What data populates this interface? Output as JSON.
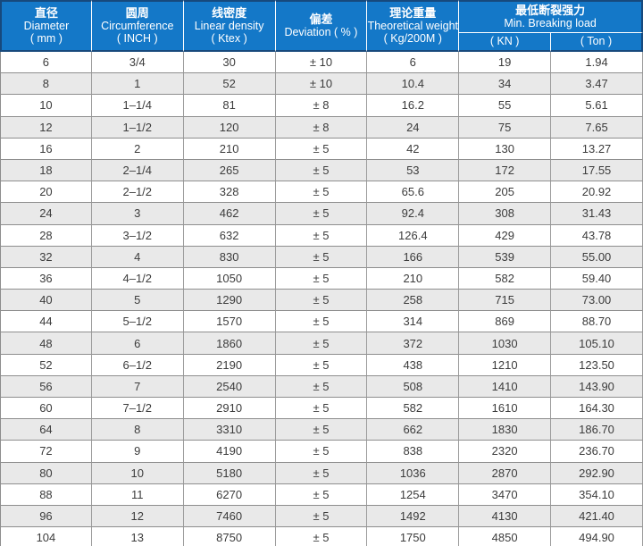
{
  "colors": {
    "header_background": "#1478c8",
    "header_border": "#17497c",
    "header_text": "#ffffff",
    "row_alternate": "#e9e9e9",
    "grid_line": "#9c9c9c",
    "body_text": "#3c3c3c"
  },
  "chart_data": {
    "type": "table",
    "columns": [
      {
        "cn": "直径",
        "en": "Diameter",
        "unit": "( mm )"
      },
      {
        "cn": "圆周",
        "en": "Circumference",
        "unit": "( INCH )"
      },
      {
        "cn": "线密度",
        "en": "Linear density",
        "unit": "( Ktex )"
      },
      {
        "cn": "偏差",
        "en": "Deviation ( % )",
        "unit": ""
      },
      {
        "cn": "理论重量",
        "en": "Theoretical weight",
        "unit": "( Kg/200M )"
      }
    ],
    "group_header": {
      "cn": "最低断裂强力",
      "en": "Min. Breaking load",
      "sub": [
        "( KN )",
        "( Ton )"
      ]
    },
    "rows": [
      [
        "6",
        "3/4",
        "30",
        "± 10",
        "6",
        "19",
        "1.94"
      ],
      [
        "8",
        "1",
        "52",
        "± 10",
        "10.4",
        "34",
        "3.47"
      ],
      [
        "10",
        "1–1/4",
        "81",
        "± 8",
        "16.2",
        "55",
        "5.61"
      ],
      [
        "12",
        "1–1/2",
        "120",
        "± 8",
        "24",
        "75",
        "7.65"
      ],
      [
        "16",
        "2",
        "210",
        "± 5",
        "42",
        "130",
        "13.27"
      ],
      [
        "18",
        "2–1/4",
        "265",
        "± 5",
        "53",
        "172",
        "17.55"
      ],
      [
        "20",
        "2–1/2",
        "328",
        "± 5",
        "65.6",
        "205",
        "20.92"
      ],
      [
        "24",
        "3",
        "462",
        "± 5",
        "92.4",
        "308",
        "31.43"
      ],
      [
        "28",
        "3–1/2",
        "632",
        "± 5",
        "126.4",
        "429",
        "43.78"
      ],
      [
        "32",
        "4",
        "830",
        "± 5",
        "166",
        "539",
        "55.00"
      ],
      [
        "36",
        "4–1/2",
        "1050",
        "± 5",
        "210",
        "582",
        "59.40"
      ],
      [
        "40",
        "5",
        "1290",
        "± 5",
        "258",
        "715",
        "73.00"
      ],
      [
        "44",
        "5–1/2",
        "1570",
        "± 5",
        "314",
        "869",
        "88.70"
      ],
      [
        "48",
        "6",
        "1860",
        "± 5",
        "372",
        "1030",
        "105.10"
      ],
      [
        "52",
        "6–1/2",
        "2190",
        "± 5",
        "438",
        "1210",
        "123.50"
      ],
      [
        "56",
        "7",
        "2540",
        "± 5",
        "508",
        "1410",
        "143.90"
      ],
      [
        "60",
        "7–1/2",
        "2910",
        "± 5",
        "582",
        "1610",
        "164.30"
      ],
      [
        "64",
        "8",
        "3310",
        "± 5",
        "662",
        "1830",
        "186.70"
      ],
      [
        "72",
        "9",
        "4190",
        "± 5",
        "838",
        "2320",
        "236.70"
      ],
      [
        "80",
        "10",
        "5180",
        "± 5",
        "1036",
        "2870",
        "292.90"
      ],
      [
        "88",
        "11",
        "6270",
        "± 5",
        "1254",
        "3470",
        "354.10"
      ],
      [
        "96",
        "12",
        "7460",
        "± 5",
        "1492",
        "4130",
        "421.40"
      ],
      [
        "104",
        "13",
        "8750",
        "± 5",
        "1750",
        "4850",
        "494.90"
      ]
    ]
  }
}
